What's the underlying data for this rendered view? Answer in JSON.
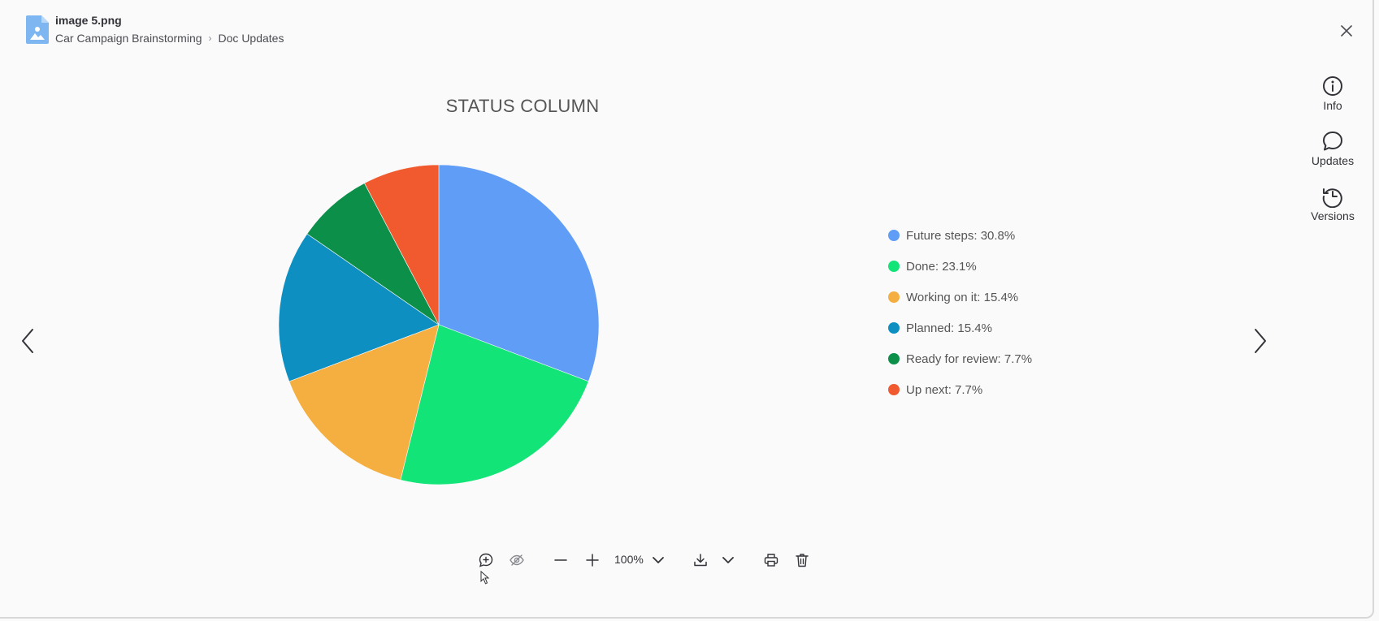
{
  "header": {
    "file_name": "image 5.png",
    "breadcrumb": {
      "board": "Car Campaign Brainstorming",
      "column": "Doc Updates"
    },
    "file_icon": "image-file-icon",
    "close_icon": "close-icon"
  },
  "side_panel": {
    "items": [
      {
        "label": "Info",
        "icon": "info-icon"
      },
      {
        "label": "Updates",
        "icon": "chat-bubble-icon"
      },
      {
        "label": "Versions",
        "icon": "history-icon"
      }
    ]
  },
  "navigation": {
    "prev_icon": "chevron-left-icon",
    "next_icon": "chevron-right-icon"
  },
  "chart_data": {
    "type": "pie",
    "title": "STATUS COLUMN",
    "slices": [
      {
        "label": "Future steps",
        "value": 30.8,
        "display": "Future steps: 30.8%",
        "color": "#5f9df7"
      },
      {
        "label": "Done",
        "value": 23.1,
        "display": "Done: 23.1%",
        "color": "#12e477"
      },
      {
        "label": "Working on it",
        "value": 15.4,
        "display": "Working on it: 15.4%",
        "color": "#f5ae40"
      },
      {
        "label": "Planned",
        "value": 15.4,
        "display": "Planned: 15.4%",
        "color": "#0d90c1"
      },
      {
        "label": "Ready for review",
        "value": 7.7,
        "display": "Ready for review: 7.7%",
        "color": "#0b8f49"
      },
      {
        "label": "Up next",
        "value": 7.7,
        "display": "Up next: 7.7%",
        "color": "#f05a2e"
      }
    ],
    "legend_position": "right"
  },
  "toolbar": {
    "zoom_level": "100%",
    "icons": [
      "add-comment-icon",
      "hide-icon",
      "zoom-out-icon",
      "zoom-in-icon",
      "zoom-dropdown-icon",
      "download-icon",
      "download-dropdown-icon",
      "print-icon",
      "delete-icon"
    ]
  },
  "colors": {
    "background": "#fafafa",
    "file_icon": "#7eb6f1",
    "text": "#323338"
  }
}
